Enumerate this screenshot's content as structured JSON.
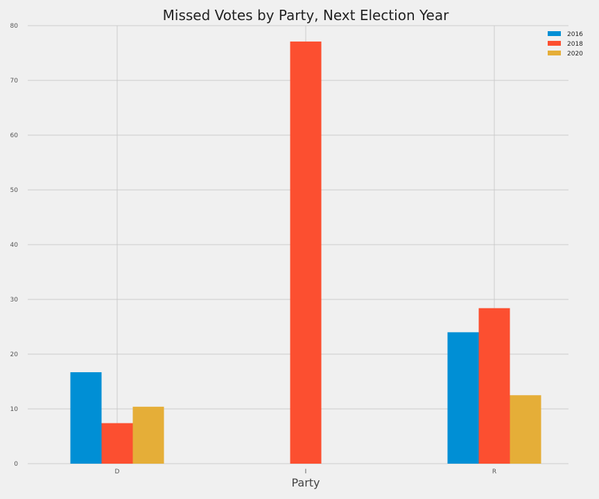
{
  "chart_data": {
    "type": "bar",
    "title": "Missed Votes by Party, Next Election Year",
    "xlabel": "Party",
    "ylabel": "",
    "categories": [
      "D",
      "I",
      "R"
    ],
    "series": [
      {
        "name": "2016",
        "color": "#008fd5",
        "values": [
          16.7,
          0,
          24.0
        ]
      },
      {
        "name": "2018",
        "color": "#fc4f30",
        "values": [
          7.4,
          77.1,
          28.4
        ]
      },
      {
        "name": "2020",
        "color": "#e5ae38",
        "values": [
          10.4,
          0,
          12.5
        ]
      }
    ],
    "ylim": [
      0,
      80
    ],
    "yticks": [
      "0",
      "10",
      "20",
      "30",
      "40",
      "50",
      "60",
      "70",
      "80"
    ],
    "grid": true,
    "legend_position": "top-right",
    "colors": {
      "background": "#f0f0f0",
      "grid": "#cbcbcb",
      "text": "#222222"
    }
  }
}
